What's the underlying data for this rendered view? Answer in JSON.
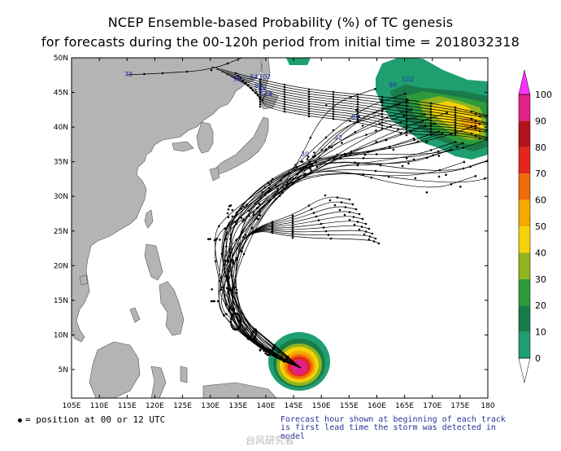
{
  "title_line1": "NCEP Ensemble-based Probability (%) of TC genesis",
  "title_line2": "for forecasts during the 00-120h period from initial time = 2018032318",
  "lon_labels": [
    "105E",
    "110E",
    "115E",
    "120E",
    "125E",
    "130E",
    "135E",
    "140E",
    "145E",
    "150E",
    "155E",
    "160E",
    "165E",
    "170E",
    "175E",
    "180"
  ],
  "lat_labels": [
    "5N",
    "10N",
    "15N",
    "20N",
    "25N",
    "30N",
    "35N",
    "40N",
    "45N",
    "50N"
  ],
  "colorbar": {
    "labels": [
      "0",
      "10",
      "20",
      "30",
      "40",
      "50",
      "60",
      "70",
      "80",
      "90",
      "100"
    ],
    "colors": [
      "#1f9f6f",
      "#1a7a4a",
      "#2f9a3a",
      "#8fb51e",
      "#f5d20a",
      "#f5a800",
      "#f26b0a",
      "#e5261e",
      "#b3121a",
      "#e0238a",
      "#ff33ff"
    ]
  },
  "legend_text": "= position at 00 or 12 UTC",
  "note_line1": "Forecast hour shown at beginning of each track",
  "note_line2": "is first lead time the storm was detected in model",
  "watermark": "台风研究者",
  "hour_labels": [
    "78",
    "96",
    "84",
    "102",
    "90",
    "96",
    "114",
    "66",
    "42",
    "30",
    "96",
    "102"
  ],
  "colors": {
    "land": "#b4b4b4",
    "ocean": "#ffffff",
    "track": "#000000",
    "hour_label": "#2233aa"
  }
}
